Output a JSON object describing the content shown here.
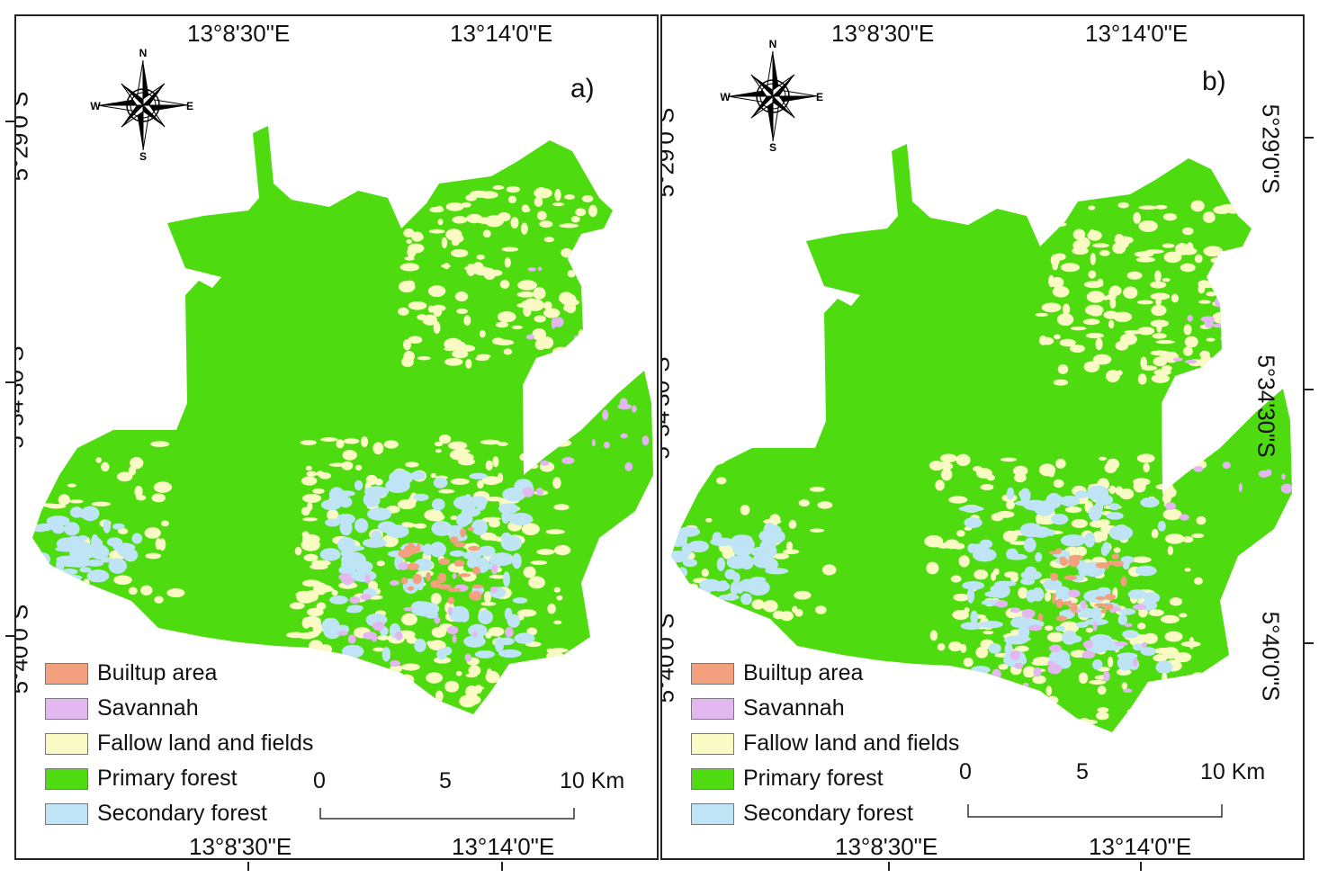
{
  "colors": {
    "builtup": "#f2a07e",
    "savannah": "#e3b7f0",
    "fallow": "#fafac4",
    "primary": "#4edb10",
    "secondary": "#bfe4f6"
  },
  "compass": {
    "n": "N",
    "s": "S",
    "e": "E",
    "w": "W"
  },
  "coords": {
    "lon_1": "13°8'30\"E",
    "lon_2": "13°14'0\"E",
    "lat_1": "5°29'0\"S",
    "lat_2": "5°34'30\"S",
    "lat_3": "5°40'0\"S"
  },
  "legend": [
    {
      "label": "Builtup area",
      "color_key": "builtup"
    },
    {
      "label": "Savannah",
      "color_key": "savannah"
    },
    {
      "label": "Fallow land and fields",
      "color_key": "fallow"
    },
    {
      "label": "Primary forest",
      "color_key": "primary"
    },
    {
      "label": "Secondary forest",
      "color_key": "secondary"
    }
  ],
  "scale": {
    "zero": "0",
    "mid": "5",
    "end": "10 Km"
  },
  "panels": [
    {
      "id": "a",
      "label": "a)"
    },
    {
      "id": "b",
      "label": "b)"
    }
  ]
}
